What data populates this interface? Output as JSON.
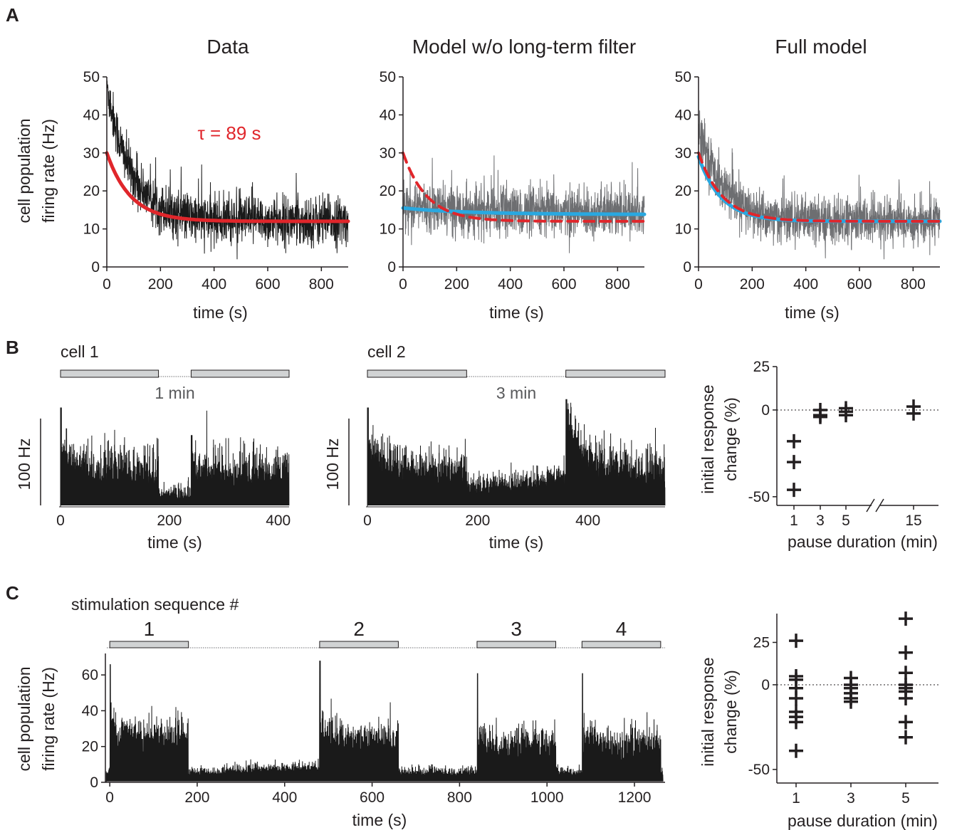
{
  "panel_letters": [
    "A",
    "B",
    "C"
  ],
  "chart_data": [
    {
      "id": "A1",
      "type": "line",
      "title": "Data",
      "xlabel": "time (s)",
      "ylabel_lines": [
        "cell population",
        "firing rate (Hz)"
      ],
      "xlim": [
        0,
        900
      ],
      "ylim": [
        0,
        50
      ],
      "xticks": [
        0,
        200,
        400,
        600,
        800
      ],
      "yticks": [
        0,
        10,
        20,
        30,
        40,
        50
      ],
      "annotation": "τ = 89 s",
      "series": [
        {
          "role": "trace",
          "color": "#1a1a1a",
          "model": "exp_decay_noisy",
          "start": 48,
          "tau": 89,
          "baseline": 12,
          "noise": 3.2
        },
        {
          "role": "fit",
          "color": "#e0262b",
          "style": "solid",
          "model": "exp_decay",
          "start": 30,
          "tau": 89,
          "baseline": 12
        }
      ]
    },
    {
      "id": "A2",
      "type": "line",
      "title": "Model w/o long-term filter",
      "xlabel": "time (s)",
      "ylabel_lines": [],
      "xlim": [
        0,
        900
      ],
      "ylim": [
        0,
        50
      ],
      "xticks": [
        0,
        200,
        400,
        600,
        800
      ],
      "yticks": [
        0,
        10,
        20,
        30,
        40,
        50
      ],
      "series": [
        {
          "role": "trace",
          "color": "#6d6e71",
          "model": "exp_decay_noisy",
          "start": 16,
          "tau": 300,
          "baseline": 14,
          "noise": 3.2
        },
        {
          "role": "fit",
          "color": "#29a8e0",
          "style": "solid",
          "model": "exp_decay",
          "start": 15.5,
          "tau": 250,
          "baseline": 13.8
        },
        {
          "role": "fit",
          "color": "#e0262b",
          "style": "dashed",
          "model": "exp_decay",
          "start": 30,
          "tau": 89,
          "baseline": 12
        }
      ]
    },
    {
      "id": "A3",
      "type": "line",
      "title": "Full model",
      "xlabel": "time (s)",
      "ylabel_lines": [],
      "xlim": [
        0,
        900
      ],
      "ylim": [
        0,
        50
      ],
      "xticks": [
        0,
        200,
        400,
        600,
        800
      ],
      "yticks": [
        0,
        10,
        20,
        30,
        40,
        50
      ],
      "series": [
        {
          "role": "trace",
          "color": "#6d6e71",
          "model": "exp_decay_noisy",
          "start": 38,
          "tau": 85,
          "baseline": 12,
          "noise": 3.2
        },
        {
          "role": "fit",
          "color": "#29a8e0",
          "style": "solid",
          "model": "exp_decay",
          "start": 29,
          "tau": 85,
          "baseline": 12
        },
        {
          "role": "fit",
          "color": "#e0262b",
          "style": "dashed",
          "model": "exp_decay",
          "start": 30,
          "tau": 89,
          "baseline": 12
        }
      ]
    },
    {
      "id": "B1",
      "type": "line",
      "label": "cell 1",
      "xlabel": "time (s)",
      "scale_bar": "100 Hz",
      "pause_label": "1 min",
      "xlim": [
        0,
        420
      ],
      "xticks": [
        0,
        200,
        400
      ],
      "stim_blocks": [
        [
          0,
          180
        ],
        [
          240,
          420
        ]
      ],
      "color": "#1a1a1a"
    },
    {
      "id": "B2",
      "type": "line",
      "label": "cell 2",
      "xlabel": "time (s)",
      "scale_bar": "100 Hz",
      "pause_label": "3 min",
      "xlim": [
        0,
        540
      ],
      "xticks": [
        0,
        200,
        400
      ],
      "stim_blocks": [
        [
          0,
          180
        ],
        [
          360,
          540
        ]
      ],
      "color": "#1a1a1a"
    },
    {
      "id": "B3",
      "type": "scatter",
      "xlabel": "pause duration (min)",
      "ylabel_lines": [
        "initial response",
        "change (%)"
      ],
      "ylim": [
        -55,
        25
      ],
      "yticks": [
        25,
        0,
        -50
      ],
      "ytick_labels": [
        "25",
        "0",
        "-50"
      ],
      "xticks": [
        1,
        3,
        5,
        15
      ],
      "axis_break": true,
      "points": [
        {
          "x": 1,
          "y": -18
        },
        {
          "x": 1,
          "y": -30
        },
        {
          "x": 1,
          "y": -46
        },
        {
          "x": 3,
          "y": 0
        },
        {
          "x": 3,
          "y": -4
        },
        {
          "x": 3,
          "y": -3
        },
        {
          "x": 5,
          "y": 1
        },
        {
          "x": 5,
          "y": -3
        },
        {
          "x": 5,
          "y": -1
        },
        {
          "x": 15,
          "y": 2
        },
        {
          "x": 15,
          "y": -2
        }
      ]
    },
    {
      "id": "C1",
      "type": "line",
      "label": "stimulation sequence #",
      "xlabel": "time (s)",
      "ylabel_lines": [
        "cell population",
        "firing rate (Hz)"
      ],
      "xlim": [
        -10,
        1270
      ],
      "ylim": [
        0,
        72
      ],
      "xticks": [
        0,
        200,
        400,
        600,
        800,
        1000,
        1200
      ],
      "yticks": [
        0,
        20,
        40,
        60
      ],
      "stim_blocks": [
        [
          0,
          180
        ],
        [
          480,
          660
        ],
        [
          840,
          1020
        ],
        [
          1080,
          1260
        ]
      ],
      "stim_labels": [
        "1",
        "2",
        "3",
        "4"
      ],
      "peaks": [
        66,
        68,
        61,
        61
      ],
      "color": "#1a1a1a"
    },
    {
      "id": "C2",
      "type": "scatter",
      "xlabel": "pause duration (min)",
      "ylabel_lines": [
        "initial response",
        "change (%)"
      ],
      "ylim": [
        -58,
        42
      ],
      "yticks": [
        25,
        0,
        -50
      ],
      "ytick_labels": [
        "25",
        "0",
        "-50"
      ],
      "xticks": [
        1,
        3,
        5
      ],
      "points": [
        {
          "x": 1,
          "y": 26
        },
        {
          "x": 1,
          "y": 5
        },
        {
          "x": 1,
          "y": 3
        },
        {
          "x": 1,
          "y": -2
        },
        {
          "x": 1,
          "y": -8
        },
        {
          "x": 1,
          "y": -16
        },
        {
          "x": 1,
          "y": -19
        },
        {
          "x": 1,
          "y": -22
        },
        {
          "x": 1,
          "y": -39
        },
        {
          "x": 3,
          "y": 4
        },
        {
          "x": 3,
          "y": 0
        },
        {
          "x": 3,
          "y": -2
        },
        {
          "x": 3,
          "y": -5
        },
        {
          "x": 3,
          "y": -8
        },
        {
          "x": 3,
          "y": -10
        },
        {
          "x": 5,
          "y": 39
        },
        {
          "x": 5,
          "y": 19
        },
        {
          "x": 5,
          "y": 7
        },
        {
          "x": 5,
          "y": 0
        },
        {
          "x": 5,
          "y": -2
        },
        {
          "x": 5,
          "y": -4
        },
        {
          "x": 5,
          "y": -8
        },
        {
          "x": 5,
          "y": -22
        },
        {
          "x": 5,
          "y": -31
        }
      ]
    }
  ]
}
